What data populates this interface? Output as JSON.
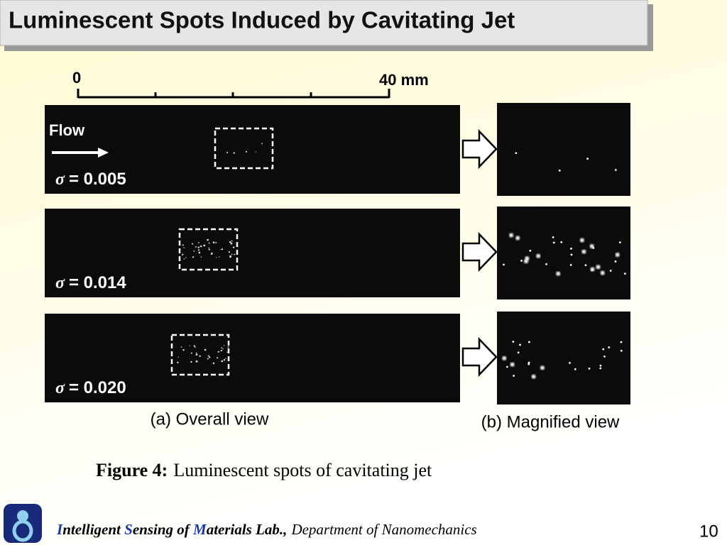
{
  "header": {
    "title": "Luminescent Spots Induced by Cavitating Jet"
  },
  "scale_bar": {
    "start": "0",
    "end": "40 mm"
  },
  "flow_label": "Flow",
  "rows": [
    {
      "symbol": "σ",
      "value": "= 0.005"
    },
    {
      "symbol": "σ",
      "value": "= 0.014"
    },
    {
      "symbol": "σ",
      "value": "= 0.020"
    }
  ],
  "captions": {
    "overall": "(a) Overall view",
    "magnified": "(b) Magnified view"
  },
  "figure": {
    "label": "Figure 4:",
    "text": "Luminescent spots of cavitating jet"
  },
  "footer": {
    "lab": [
      {
        "initial": "I",
        "rest": "ntelligent "
      },
      {
        "initial": "S",
        "rest": "ensing of "
      },
      {
        "initial": "M",
        "rest": "aterials Lab.,"
      }
    ],
    "department": "Department of Nanomechanics",
    "page": "10"
  }
}
